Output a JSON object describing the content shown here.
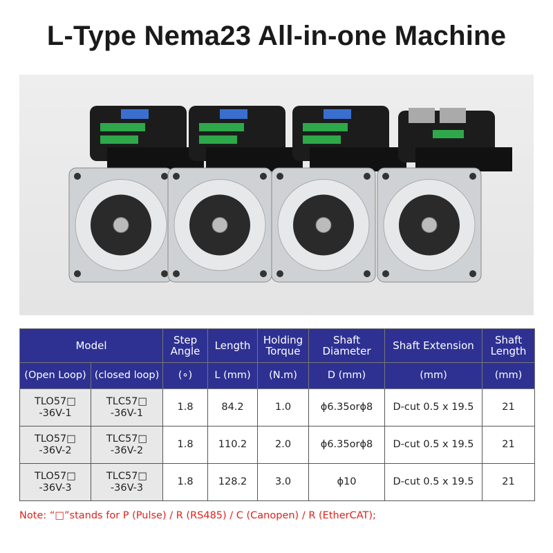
{
  "title": "L-Type Nema23 All-in-one Machine",
  "table": {
    "header1": [
      "Model",
      "Step Angle",
      "Length",
      "Holding Torque",
      "Shaft Diameter",
      "Shaft Extension",
      "Shaft Length"
    ],
    "header2": [
      "(Open Loop)",
      "(closed loop)",
      "(∘)",
      "L (mm)",
      "(N.m)",
      "D (mm)",
      "(mm)",
      "(mm)"
    ],
    "rows": [
      {
        "open": "TLO57□",
        "open_sub": "-36V-1",
        "closed": "TLC57□",
        "closed_sub": "-36V-1",
        "step": "1.8",
        "length": "84.2",
        "torque": "1.0",
        "diameter": "ϕ6.35orϕ8",
        "extension": "D-cut 0.5 x 19.5",
        "shaft_length": "21"
      },
      {
        "open": "TLO57□",
        "open_sub": "-36V-2",
        "closed": "TLC57□",
        "closed_sub": "-36V-2",
        "step": "1.8",
        "length": "110.2",
        "torque": "2.0",
        "diameter": "ϕ6.35orϕ8",
        "extension": "D-cut 0.5 x 19.5",
        "shaft_length": "21"
      },
      {
        "open": "TLO57□",
        "open_sub": "-36V-3",
        "closed": "TLC57□",
        "closed_sub": "-36V-3",
        "step": "1.8",
        "length": "128.2",
        "torque": "3.0",
        "diameter": "ϕ10",
        "extension": "D-cut 0.5 x 19.5",
        "shaft_length": "21"
      }
    ]
  },
  "note": "Note: “□”stands for P (Pulse) / R (RS485) / C (Canopen) / R (EtherCAT);",
  "colors": {
    "header_bg": "#2e3192",
    "note": "#e0211b",
    "model_cell_bg": "#e8e8e8"
  }
}
